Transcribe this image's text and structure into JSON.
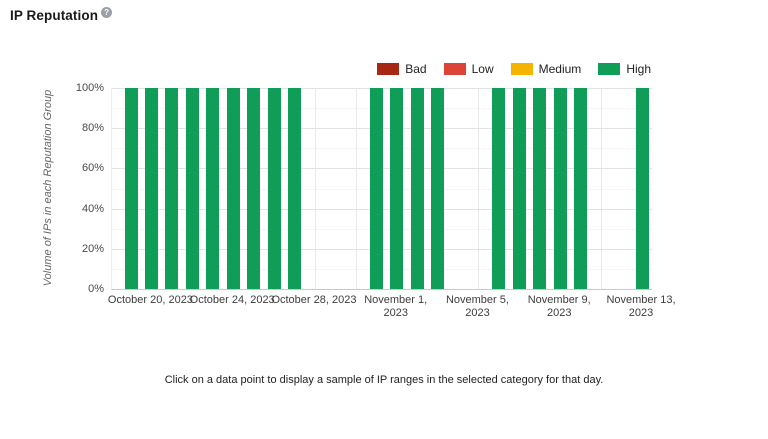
{
  "page": {
    "title": "IP Reputation",
    "help_icon_glyph": "?",
    "caption": "Click on a data point to display a sample of IP ranges in the selected category for that day."
  },
  "colors": {
    "bad": "#a52714",
    "low": "#db4437",
    "medium": "#f4b400",
    "high": "#0f9d58"
  },
  "chart_data": {
    "type": "bar",
    "subtype": "stacked-percentage-column",
    "title": "IP Reputation",
    "xlabel": "",
    "ylabel": "Volume of IPs in each Reputation Group",
    "ylim": [
      0,
      100
    ],
    "y_ticks": [
      "0%",
      "20%",
      "40%",
      "60%",
      "80%",
      "100%"
    ],
    "grid": true,
    "legend_position": "top-right",
    "legend": [
      {
        "label": "Bad",
        "color": "#a52714"
      },
      {
        "label": "Low",
        "color": "#db4437"
      },
      {
        "label": "Medium",
        "color": "#f4b400"
      },
      {
        "label": "High",
        "color": "#0f9d58"
      }
    ],
    "x_ticks": [
      {
        "day_index": 1,
        "lines": [
          "October 20, 2023"
        ]
      },
      {
        "day_index": 5,
        "lines": [
          "October 24, 2023"
        ]
      },
      {
        "day_index": 9,
        "lines": [
          "October 28, 2023"
        ]
      },
      {
        "day_index": 13,
        "lines": [
          "November 1,",
          "2023"
        ]
      },
      {
        "day_index": 17,
        "lines": [
          "November 5,",
          "2023"
        ]
      },
      {
        "day_index": 21,
        "lines": [
          "November 9,",
          "2023"
        ]
      },
      {
        "day_index": 25,
        "lines": [
          "November 13,",
          "2023"
        ]
      }
    ],
    "days": [
      {
        "label": "October 19, 2023",
        "bad": 0,
        "low": 0,
        "medium": 0,
        "high": 100
      },
      {
        "label": "October 20, 2023",
        "bad": 0,
        "low": 0,
        "medium": 0,
        "high": 100
      },
      {
        "label": "October 21, 2023",
        "bad": 0,
        "low": 0,
        "medium": 0,
        "high": 100
      },
      {
        "label": "October 22, 2023",
        "bad": 0,
        "low": 0,
        "medium": 0,
        "high": 100
      },
      {
        "label": "October 23, 2023",
        "bad": 0,
        "low": 0,
        "medium": 0,
        "high": 100
      },
      {
        "label": "October 24, 2023",
        "bad": 0,
        "low": 0,
        "medium": 0,
        "high": 100
      },
      {
        "label": "October 25, 2023",
        "bad": 0,
        "low": 0,
        "medium": 0,
        "high": 100
      },
      {
        "label": "October 26, 2023",
        "bad": 0,
        "low": 0,
        "medium": 0,
        "high": 100
      },
      {
        "label": "October 27, 2023",
        "bad": 0,
        "low": 0,
        "medium": 0,
        "high": 100
      },
      {
        "label": "October 28, 2023",
        "bad": 0,
        "low": 0,
        "medium": 0,
        "high": 0
      },
      {
        "label": "October 29, 2023",
        "bad": 0,
        "low": 0,
        "medium": 0,
        "high": 0
      },
      {
        "label": "October 30, 2023",
        "bad": 0,
        "low": 0,
        "medium": 0,
        "high": 0
      },
      {
        "label": "October 31, 2023",
        "bad": 0,
        "low": 0,
        "medium": 0,
        "high": 100
      },
      {
        "label": "November 1, 2023",
        "bad": 0,
        "low": 0,
        "medium": 0,
        "high": 100
      },
      {
        "label": "November 2, 2023",
        "bad": 0,
        "low": 0,
        "medium": 0,
        "high": 100
      },
      {
        "label": "November 3, 2023",
        "bad": 0,
        "low": 0,
        "medium": 0,
        "high": 100
      },
      {
        "label": "November 4, 2023",
        "bad": 0,
        "low": 0,
        "medium": 0,
        "high": 0
      },
      {
        "label": "November 5, 2023",
        "bad": 0,
        "low": 0,
        "medium": 0,
        "high": 0
      },
      {
        "label": "November 6, 2023",
        "bad": 0,
        "low": 0,
        "medium": 0,
        "high": 100
      },
      {
        "label": "November 7, 2023",
        "bad": 0,
        "low": 0,
        "medium": 0,
        "high": 100
      },
      {
        "label": "November 8, 2023",
        "bad": 0,
        "low": 0,
        "medium": 0,
        "high": 100
      },
      {
        "label": "November 9, 2023",
        "bad": 0,
        "low": 0,
        "medium": 0,
        "high": 100
      },
      {
        "label": "November 10, 2023",
        "bad": 0,
        "low": 0,
        "medium": 0,
        "high": 100
      },
      {
        "label": "November 11, 2023",
        "bad": 0,
        "low": 0,
        "medium": 0,
        "high": 0
      },
      {
        "label": "November 12, 2023",
        "bad": 0,
        "low": 0,
        "medium": 0,
        "high": 0
      },
      {
        "label": "November 13, 2023",
        "bad": 0,
        "low": 0,
        "medium": 0,
        "high": 100
      }
    ]
  }
}
